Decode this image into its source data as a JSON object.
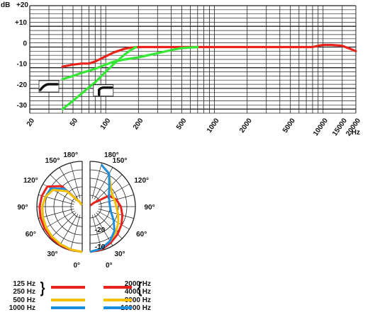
{
  "chart_data": [
    {
      "type": "line",
      "x_scale": "log",
      "xlim": [
        20,
        20000
      ],
      "ylim": [
        -32,
        20
      ],
      "y_unit_label": "dB",
      "x_unit_label": "Hz",
      "y_tick_labels": [
        "+20",
        "+10",
        "0",
        "-10",
        "-20",
        "-30"
      ],
      "y_tick_values": [
        20,
        10,
        0,
        -10,
        -20,
        -30
      ],
      "x_tick_labels": [
        "20",
        "50",
        "100",
        "200",
        "500",
        "1000",
        "2000",
        "5000",
        "10000",
        "15000",
        "20000"
      ],
      "x_tick_values": [
        20,
        50,
        100,
        200,
        500,
        1000,
        2000,
        5000,
        10000,
        15000,
        20000
      ],
      "grid": true,
      "colors": {
        "red": "#e8231c",
        "green": "#33e833",
        "curve_symbol": "#111111"
      },
      "series": [
        {
          "color": "#e8231c",
          "x": [
            40,
            50,
            60,
            70,
            80,
            100,
            120,
            150,
            170,
            200,
            500,
            1000,
            2000,
            5000,
            8000,
            9000,
            10000,
            12000,
            15000,
            18000,
            20000
          ],
          "y": [
            -9.5,
            -8.5,
            -8,
            -8,
            -7,
            -4.5,
            -2.5,
            -0.8,
            -0.3,
            0,
            0,
            0,
            0,
            0,
            0,
            0.6,
            1,
            1,
            0.6,
            -1,
            -2
          ]
        },
        {
          "color": "#33e833",
          "x": [
            40,
            50,
            60,
            70,
            80,
            100,
            120,
            150,
            200,
            300,
            400,
            500,
            700
          ],
          "y": [
            -15.5,
            -14,
            -12.5,
            -11.5,
            -10.5,
            -8.5,
            -7,
            -6,
            -5,
            -3,
            -1.5,
            -0.5,
            0
          ]
        },
        {
          "color": "#33e833",
          "x": [
            40,
            50,
            60,
            70,
            80,
            100,
            120,
            150,
            170,
            190
          ],
          "y": [
            -30,
            -26,
            -22.5,
            -19.5,
            -17,
            -12,
            -8,
            -3.5,
            -1.5,
            0
          ]
        }
      ],
      "curve_symbols": [
        {
          "type": "roll-off",
          "x": 30,
          "y": -19
        },
        {
          "type": "roll-on",
          "x": 95,
          "y": -21
        }
      ]
    },
    {
      "type": "polar",
      "angle_labels_left": [
        "180°",
        "150°",
        "120°",
        "90°",
        "60°",
        "30°",
        "0°"
      ],
      "angle_labels_right": [
        "180°",
        "150°",
        "120°",
        "90°",
        "60°",
        "30°",
        "0°"
      ],
      "radial_labels": [
        "-20",
        "-10"
      ],
      "radial_range_db": [
        -25,
        0
      ],
      "legend": [
        {
          "color": "#e8231c",
          "left_label": "125 Hz",
          "right_label": "2000 Hz"
        },
        {
          "color": "#e8231c",
          "left_label": "250 Hz",
          "right_label": "4000 Hz"
        },
        {
          "color": "#f5c000",
          "left_label": "500 Hz",
          "right_label": "8000 Hz"
        },
        {
          "color": "#1e8fe0",
          "left_label": "1000 Hz",
          "right_label": "16000 Hz"
        }
      ],
      "legend_groups": [
        {
          "side": "left",
          "brace": "}",
          "labels": [
            "125 Hz",
            "250 Hz"
          ],
          "color": "#e8231c"
        },
        {
          "side": "right",
          "brace": "{",
          "labels": [
            "2000 Hz",
            "4000 Hz"
          ],
          "color": "#e8231c"
        }
      ],
      "series_left": [
        {
          "color": "#e8231c",
          "angles": [
            0,
            15,
            30,
            45,
            60,
            75,
            90,
            105,
            120,
            135,
            150,
            165
          ],
          "db": [
            0,
            -0.3,
            -0.5,
            -0.8,
            -1,
            -1.2,
            -1.5,
            -2,
            -2.8,
            -9,
            -22,
            -24
          ]
        },
        {
          "color": "#1e8fe0",
          "angles": [
            0,
            15,
            30,
            45,
            60,
            75,
            90,
            105,
            120,
            135,
            150,
            165
          ],
          "db": [
            0,
            -0.5,
            -1,
            -1.5,
            -2,
            -2.5,
            -3,
            -4,
            -5,
            -11,
            -22,
            -24
          ]
        },
        {
          "color": "#f5c000",
          "angles": [
            0,
            15,
            30,
            45,
            60,
            75,
            90,
            105,
            120,
            135,
            150,
            165
          ],
          "db": [
            0,
            -0.5,
            -1,
            -1.5,
            -2,
            -2.5,
            -3,
            -4,
            -6.5,
            -13,
            -22,
            -24
          ]
        }
      ],
      "series_right": [
        {
          "color": "#e8231c",
          "angles": [
            0,
            15,
            30,
            45,
            60,
            75,
            90,
            105,
            120,
            135,
            150,
            165
          ],
          "db": [
            0,
            -0.5,
            -2,
            -3.5,
            -5,
            -6.5,
            -8,
            -10,
            -13,
            -22,
            -24,
            -24
          ]
        },
        {
          "color": "#f5c000",
          "angles": [
            0,
            15,
            30,
            45,
            60,
            75,
            90,
            105,
            120,
            135,
            150,
            165
          ],
          "db": [
            0,
            -1,
            -3,
            -5,
            -7,
            -9,
            -10.5,
            -11,
            -11,
            -9,
            -4,
            -1
          ]
        },
        {
          "color": "#1e8fe0",
          "angles": [
            0,
            15,
            30,
            45,
            60,
            75,
            90,
            105,
            120,
            135,
            150,
            165
          ],
          "db": [
            0,
            -1,
            -3,
            -6,
            -10,
            -13,
            -14,
            -14,
            -13,
            -10,
            -4,
            -1
          ]
        }
      ]
    }
  ]
}
